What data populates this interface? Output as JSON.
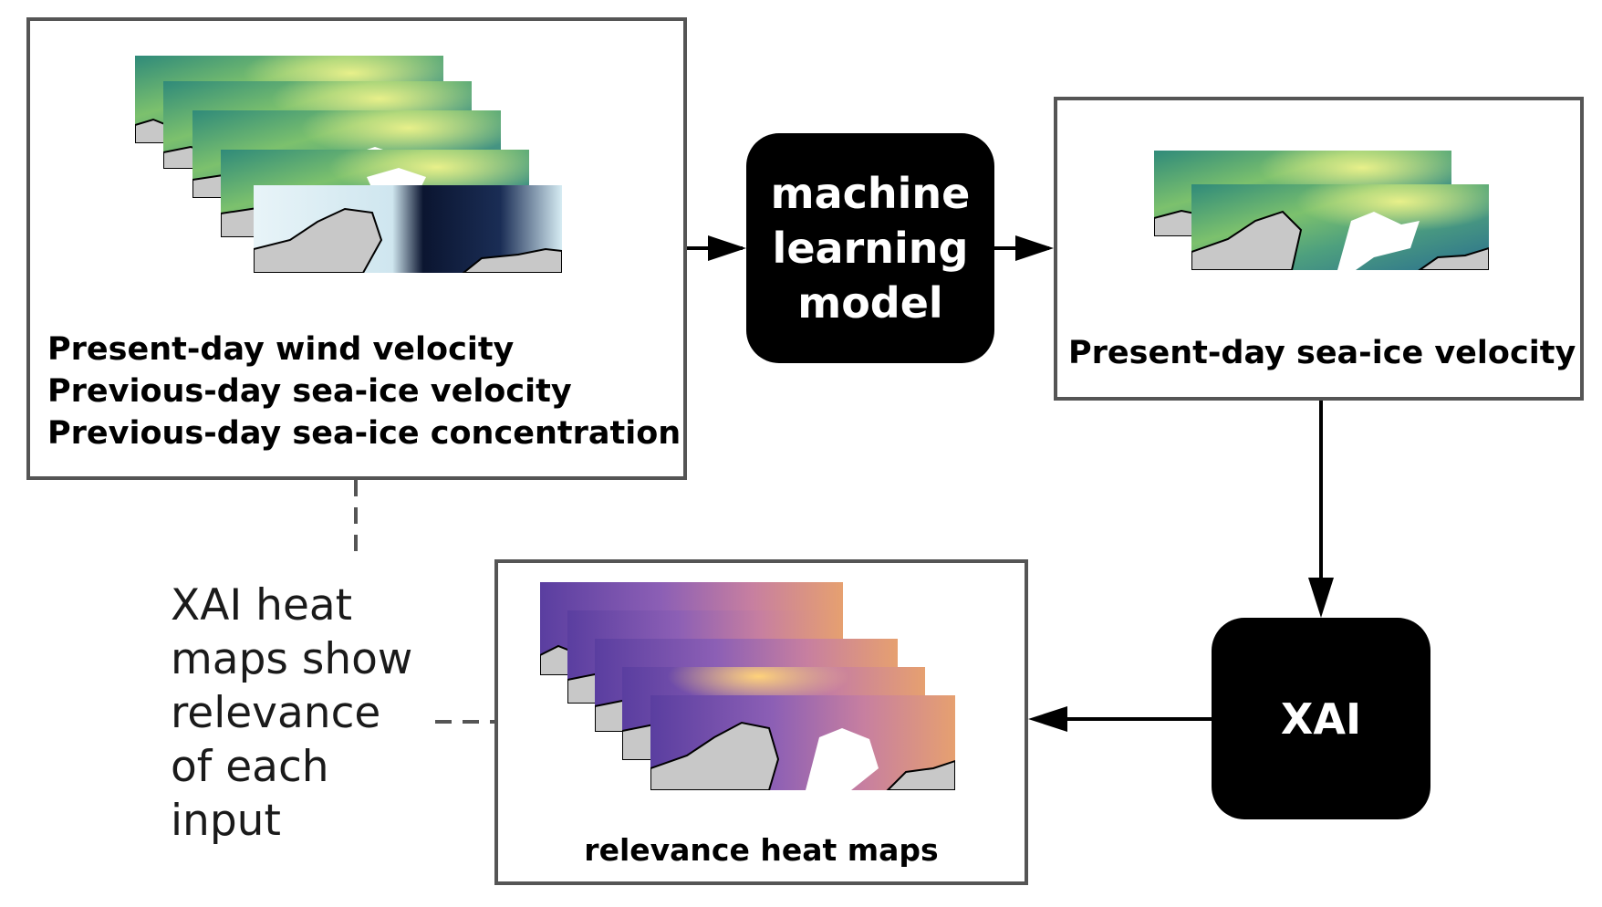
{
  "input_panel": {
    "lines": [
      "Present-day wind velocity",
      "Previous-day sea-ice velocity",
      "Previous-day sea-ice concentration"
    ]
  },
  "model_block": {
    "lines": [
      "machine",
      "learning",
      "model"
    ]
  },
  "output_panel": {
    "label": "Present-day sea-ice velocity"
  },
  "xai_block": {
    "label": "XAI"
  },
  "relevance_panel": {
    "label": "relevance heat maps"
  },
  "annotation": {
    "lines": [
      "XAI heat",
      "maps show",
      "relevance",
      "of each",
      "input"
    ]
  },
  "colors": {
    "panel_border": "#555555",
    "block_fill": "#000000",
    "wind_map": "#5fae7a",
    "ice_map": "#0b1530",
    "relevance_map": "#6a4aa8",
    "land": "#c8c8c8"
  }
}
